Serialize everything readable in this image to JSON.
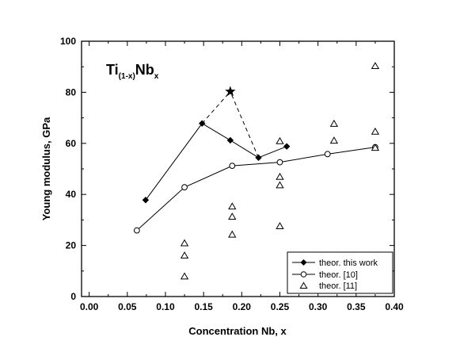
{
  "chart_data": {
    "type": "scatter",
    "title": {
      "base": "Ti",
      "base_subscript": "(1-x)",
      "element": "Nb",
      "element_subscript": "x"
    },
    "xlabel": "Concentration Nb, x",
    "ylabel": "Young modulus, GPa",
    "xlim": [
      -0.01,
      0.4
    ],
    "ylim": [
      0,
      100
    ],
    "x_ticks": [
      "0.00",
      "0.05",
      "0.10",
      "0.15",
      "0.20",
      "0.25",
      "0.30",
      "0.35",
      "0.40"
    ],
    "y_ticks": [
      "0",
      "20",
      "40",
      "60",
      "80",
      "100"
    ],
    "grid": false,
    "legend_position": "bottom-right",
    "series": [
      {
        "name": "theor. this work",
        "style": "line-filled-diamond",
        "color": "#000000",
        "points": [
          {
            "x": 0.074,
            "y": 37.8
          },
          {
            "x": 0.148,
            "y": 67.8
          },
          {
            "x": 0.185,
            "y": 61.2
          },
          {
            "x": 0.222,
            "y": 54.4
          },
          {
            "x": 0.259,
            "y": 58.8
          }
        ]
      },
      {
        "name": "theor. [10]",
        "style": "line-open-circle",
        "color": "#000000",
        "points": [
          {
            "x": 0.0625,
            "y": 25.9
          },
          {
            "x": 0.125,
            "y": 42.8
          },
          {
            "x": 0.1875,
            "y": 51.2
          },
          {
            "x": 0.25,
            "y": 52.6
          },
          {
            "x": 0.3125,
            "y": 55.8
          },
          {
            "x": 0.375,
            "y": 58.5
          }
        ]
      },
      {
        "name": "theor. [11]",
        "style": "open-triangle",
        "color": "#000000",
        "points": [
          {
            "x": 0.125,
            "y": 20.8
          },
          {
            "x": 0.125,
            "y": 16.0
          },
          {
            "x": 0.125,
            "y": 7.8
          },
          {
            "x": 0.1875,
            "y": 35.2
          },
          {
            "x": 0.1875,
            "y": 31.2
          },
          {
            "x": 0.1875,
            "y": 24.2
          },
          {
            "x": 0.25,
            "y": 60.8
          },
          {
            "x": 0.25,
            "y": 46.8
          },
          {
            "x": 0.25,
            "y": 43.5
          },
          {
            "x": 0.25,
            "y": 27.5
          },
          {
            "x": 0.321,
            "y": 67.6
          },
          {
            "x": 0.321,
            "y": 61.0
          },
          {
            "x": 0.375,
            "y": 90.2
          },
          {
            "x": 0.375,
            "y": 64.5
          },
          {
            "x": 0.375,
            "y": 58.2
          }
        ]
      }
    ],
    "annotations": [
      {
        "type": "star-dashed",
        "star": {
          "x": 0.185,
          "y": 80.3
        },
        "links": [
          {
            "x": 0.148,
            "y": 67.8
          },
          {
            "x": 0.222,
            "y": 54.4
          }
        ]
      }
    ]
  }
}
